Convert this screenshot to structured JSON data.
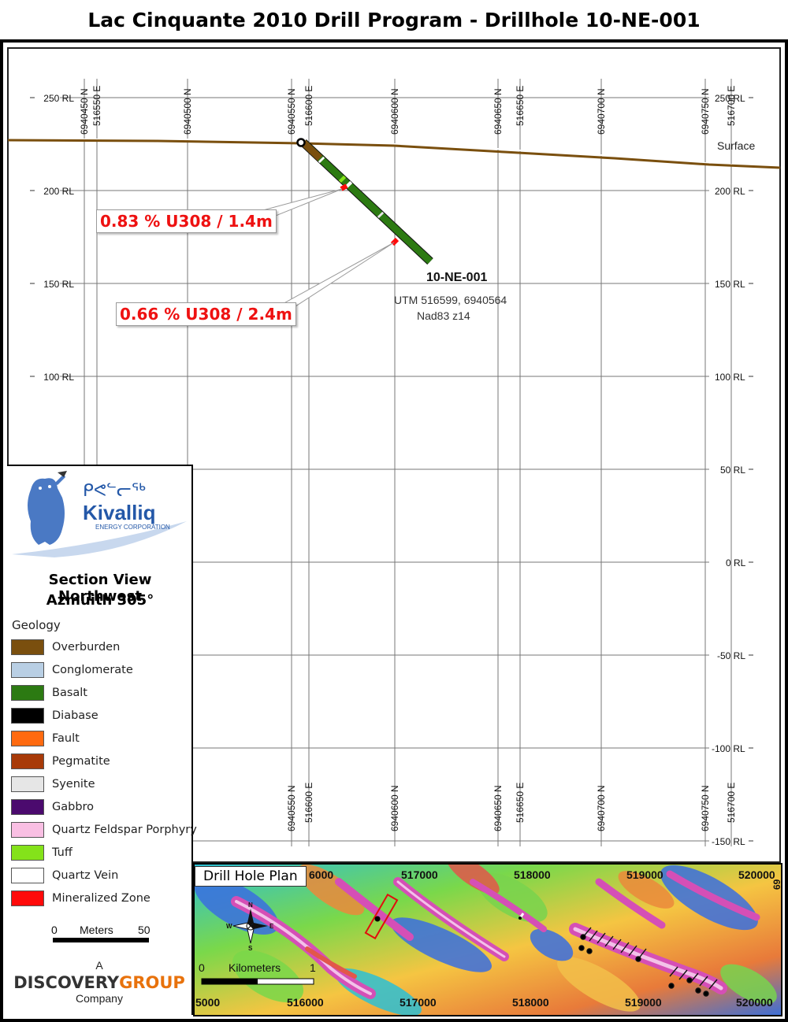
{
  "title": "Lac Cinquante 2010 Drill Program - Drillhole 10-NE-001",
  "section": {
    "rl_labels": [
      "250 RL",
      "200 RL",
      "150 RL",
      "100 RL",
      "50 RL",
      "0 RL",
      "-50 RL",
      "-100 RL",
      "-150 RL"
    ],
    "top_northing_labels": [
      "6940450 N",
      "6940500 N",
      "6940550 N",
      "6940600 N",
      "6940650 N",
      "6940700 N",
      "6940750 N"
    ],
    "top_easting_labels": [
      "516550 E",
      "516600 E",
      "516650 E",
      "516700 E"
    ],
    "bottom_northing_labels": [
      "6940550 N",
      "6940600 N",
      "6940650 N",
      "6940700 N",
      "6940750 N"
    ],
    "bottom_easting_labels": [
      "516600 E",
      "516650 E",
      "516700 E"
    ],
    "surface_label": "Surface",
    "hole": {
      "name": "10-NE-001",
      "utm": "UTM 516599, 6940564",
      "datum": "Nad83 z14"
    },
    "callouts": [
      "0.83 % U308 / 1.4m",
      "0.66 % U308 / 2.4m"
    ]
  },
  "logo": {
    "syllabics": "ᑭᕙᓪᓕᖅ",
    "name": "Kivalliq",
    "sub": "ENERGY CORPORATION"
  },
  "legend": {
    "title_line1": "Section View Northwest",
    "title_line2": "Azmuith 305°",
    "heading": "Geology",
    "items": [
      {
        "label": "Overburden",
        "color": "#7a4f0e"
      },
      {
        "label": "Conglomerate",
        "color": "#b9cfe4"
      },
      {
        "label": "Basalt",
        "color": "#2c7a12"
      },
      {
        "label": "Diabase",
        "color": "#000000"
      },
      {
        "label": "Fault",
        "color": "#ff6a10"
      },
      {
        "label": "Pegmatite",
        "color": "#a83a08"
      },
      {
        "label": "Syenite",
        "color": "#e6e6e6"
      },
      {
        "label": "Gabbro",
        "color": "#4b0a6e"
      },
      {
        "label": "Quartz Feldspar Porphyry",
        "color": "#f9bfe3"
      },
      {
        "label": "Tuff",
        "color": "#84e21a"
      },
      {
        "label": "Quartz Vein",
        "color": "#ffffff"
      },
      {
        "label": "Mineralized Zone",
        "color": "#ff0a0a"
      }
    ],
    "scale_zero": "0",
    "scale_units": "Meters",
    "scale_max": "50"
  },
  "company": {
    "pre": "A",
    "name_a": "DISCOVERY",
    "name_b": "GROUP",
    "post": "Company"
  },
  "plan": {
    "label": "Drill Hole Plan",
    "top_ticks": [
      "6000",
      "517000",
      "518000",
      "519000",
      "520000"
    ],
    "bottom_ticks": [
      "5000",
      "516000",
      "517000",
      "518000",
      "519000",
      "520000"
    ],
    "right_tick": "69",
    "scale_zero": "0",
    "scale_units": "Kilometers",
    "scale_max": "1"
  }
}
